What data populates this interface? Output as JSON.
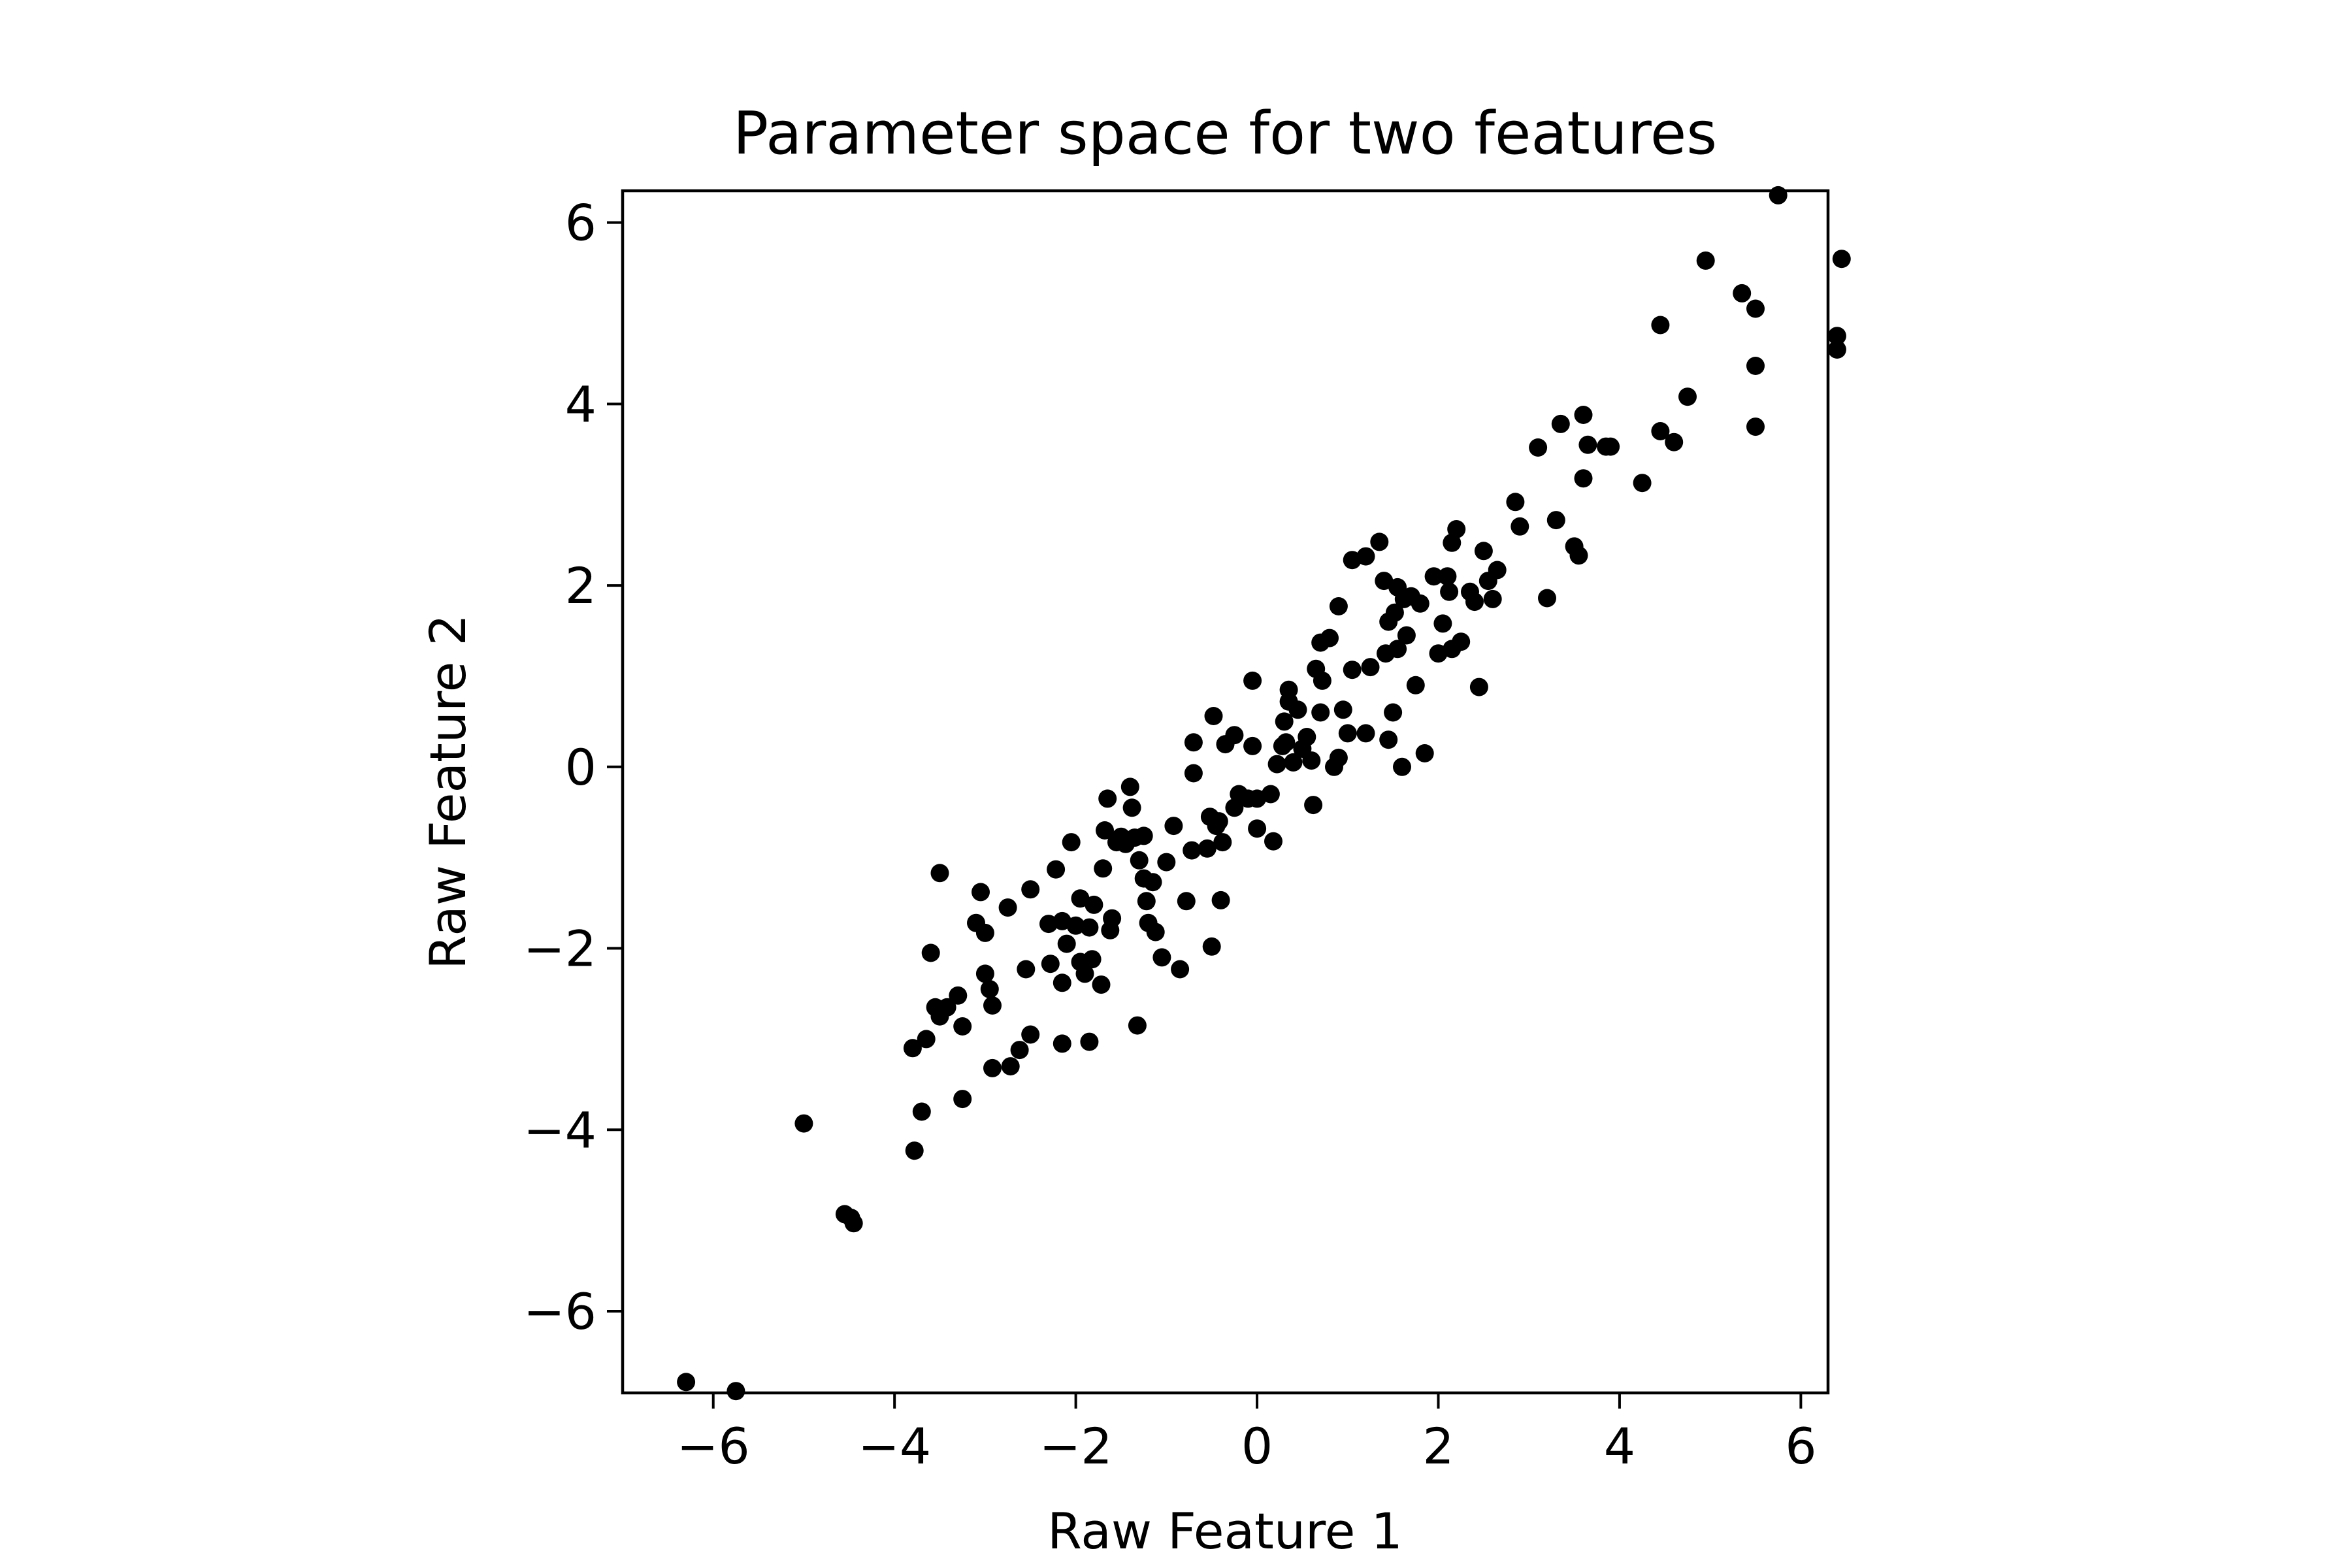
{
  "chart_data": {
    "type": "scatter",
    "title": "Parameter space for two features",
    "xlabel": "Raw Feature 1",
    "ylabel": "Raw Feature 2",
    "xlim": [
      -7.0,
      6.3
    ],
    "ylim": [
      -6.9,
      6.35
    ],
    "xticks": [
      -6,
      -4,
      -2,
      0,
      2,
      4,
      6
    ],
    "yticks": [
      -6,
      -4,
      -2,
      0,
      2,
      4,
      6
    ],
    "xtick_labels": [
      "−6",
      "−4",
      "−2",
      "0",
      "2",
      "4",
      "6"
    ],
    "ytick_labels": [
      "−6",
      "−4",
      "−2",
      "0",
      "2",
      "4",
      "6"
    ],
    "grid": false,
    "marker_color": "#000000",
    "points": [
      [
        -6.3,
        -6.78
      ],
      [
        -5.75,
        -6.88
      ],
      [
        -5.0,
        -3.93
      ],
      [
        -4.55,
        -4.93
      ],
      [
        -4.48,
        -4.97
      ],
      [
        -4.45,
        -5.03
      ],
      [
        -3.8,
        -3.1
      ],
      [
        -3.78,
        -4.23
      ],
      [
        -3.7,
        -3.8
      ],
      [
        -3.65,
        -3.0
      ],
      [
        -3.6,
        -2.05
      ],
      [
        -3.55,
        -2.65
      ],
      [
        -3.5,
        -1.17
      ],
      [
        -3.5,
        -2.75
      ],
      [
        -3.42,
        -2.65
      ],
      [
        -3.3,
        -2.52
      ],
      [
        -3.25,
        -3.66
      ],
      [
        -3.25,
        -2.86
      ],
      [
        -3.1,
        -1.72
      ],
      [
        -3.05,
        -1.38
      ],
      [
        -3.0,
        -1.83
      ],
      [
        -3.0,
        -2.28
      ],
      [
        -2.95,
        -2.45
      ],
      [
        -2.92,
        -2.63
      ],
      [
        -2.92,
        -3.32
      ],
      [
        -2.75,
        -1.55
      ],
      [
        -2.72,
        -3.3
      ],
      [
        -2.62,
        -3.12
      ],
      [
        -2.55,
        -2.23
      ],
      [
        -2.5,
        -1.35
      ],
      [
        -2.5,
        -2.95
      ],
      [
        -2.3,
        -1.73
      ],
      [
        -2.28,
        -2.17
      ],
      [
        -2.22,
        -1.13
      ],
      [
        -2.15,
        -3.05
      ],
      [
        -2.15,
        -2.38
      ],
      [
        -2.15,
        -1.7
      ],
      [
        -2.1,
        -1.95
      ],
      [
        -2.05,
        -0.83
      ],
      [
        -2.0,
        -1.75
      ],
      [
        -1.95,
        -2.15
      ],
      [
        -1.95,
        -1.45
      ],
      [
        -1.9,
        -2.28
      ],
      [
        -1.85,
        -1.77
      ],
      [
        -1.85,
        -3.03
      ],
      [
        -1.82,
        -2.12
      ],
      [
        -1.8,
        -1.52
      ],
      [
        -1.72,
        -2.4
      ],
      [
        -1.7,
        -1.12
      ],
      [
        -1.68,
        -0.7
      ],
      [
        -1.65,
        -0.35
      ],
      [
        -1.62,
        -1.8
      ],
      [
        -1.6,
        -1.67
      ],
      [
        -1.55,
        -0.83
      ],
      [
        -1.5,
        -0.77
      ],
      [
        -1.45,
        -0.85
      ],
      [
        -1.4,
        -0.22
      ],
      [
        -1.38,
        -0.45
      ],
      [
        -1.35,
        -0.78
      ],
      [
        -1.32,
        -2.85
      ],
      [
        -1.3,
        -1.03
      ],
      [
        -1.25,
        -1.23
      ],
      [
        -1.25,
        -0.76
      ],
      [
        -1.22,
        -1.48
      ],
      [
        -1.2,
        -1.72
      ],
      [
        -1.15,
        -1.27
      ],
      [
        -1.12,
        -1.82
      ],
      [
        -1.05,
        -2.1
      ],
      [
        -1.0,
        -1.05
      ],
      [
        -0.92,
        -0.65
      ],
      [
        -0.85,
        -2.23
      ],
      [
        -0.78,
        -1.48
      ],
      [
        -0.72,
        -0.92
      ],
      [
        -0.7,
        -0.07
      ],
      [
        -0.7,
        0.27
      ],
      [
        -0.55,
        -0.9
      ],
      [
        -0.52,
        -0.55
      ],
      [
        -0.5,
        -1.98
      ],
      [
        -0.48,
        0.56
      ],
      [
        -0.45,
        -0.65
      ],
      [
        -0.42,
        -0.6
      ],
      [
        -0.4,
        -1.47
      ],
      [
        -0.38,
        -0.83
      ],
      [
        -0.35,
        0.25
      ],
      [
        -0.25,
        0.35
      ],
      [
        -0.25,
        -0.45
      ],
      [
        -0.2,
        -0.3
      ],
      [
        -0.1,
        -0.35
      ],
      [
        -0.05,
        0.95
      ],
      [
        -0.05,
        0.23
      ],
      [
        0.0,
        -0.35
      ],
      [
        0.0,
        -0.68
      ],
      [
        0.15,
        -0.3
      ],
      [
        0.18,
        -0.82
      ],
      [
        0.22,
        0.03
      ],
      [
        0.28,
        0.23
      ],
      [
        0.3,
        0.5
      ],
      [
        0.32,
        0.27
      ],
      [
        0.35,
        0.72
      ],
      [
        0.35,
        0.85
      ],
      [
        0.4,
        0.05
      ],
      [
        0.45,
        0.63
      ],
      [
        0.5,
        0.2
      ],
      [
        0.55,
        0.33
      ],
      [
        0.6,
        0.07
      ],
      [
        0.62,
        -0.42
      ],
      [
        0.65,
        1.08
      ],
      [
        0.7,
        0.6
      ],
      [
        0.7,
        1.37
      ],
      [
        0.72,
        0.95
      ],
      [
        0.8,
        1.42
      ],
      [
        0.85,
        0.0
      ],
      [
        0.9,
        1.77
      ],
      [
        0.9,
        0.1
      ],
      [
        0.95,
        0.63
      ],
      [
        1.0,
        0.37
      ],
      [
        1.05,
        1.07
      ],
      [
        1.05,
        2.28
      ],
      [
        1.2,
        0.37
      ],
      [
        1.2,
        2.32
      ],
      [
        1.25,
        1.1
      ],
      [
        1.35,
        2.48
      ],
      [
        1.4,
        2.05
      ],
      [
        1.42,
        1.25
      ],
      [
        1.45,
        0.3
      ],
      [
        1.45,
        1.6
      ],
      [
        1.5,
        0.6
      ],
      [
        1.52,
        1.7
      ],
      [
        1.55,
        1.98
      ],
      [
        1.55,
        1.3
      ],
      [
        1.6,
        0.0
      ],
      [
        1.62,
        1.85
      ],
      [
        1.65,
        1.45
      ],
      [
        1.7,
        1.88
      ],
      [
        1.75,
        0.9
      ],
      [
        1.8,
        1.8
      ],
      [
        1.85,
        0.15
      ],
      [
        1.95,
        2.1
      ],
      [
        2.0,
        1.25
      ],
      [
        2.05,
        1.58
      ],
      [
        2.1,
        2.1
      ],
      [
        2.12,
        1.93
      ],
      [
        2.15,
        2.47
      ],
      [
        2.15,
        1.3
      ],
      [
        2.2,
        2.62
      ],
      [
        2.25,
        1.38
      ],
      [
        2.35,
        1.93
      ],
      [
        2.4,
        1.82
      ],
      [
        2.45,
        0.88
      ],
      [
        2.5,
        2.38
      ],
      [
        2.55,
        2.05
      ],
      [
        2.6,
        1.85
      ],
      [
        2.65,
        2.17
      ],
      [
        2.85,
        2.92
      ],
      [
        2.9,
        2.65
      ],
      [
        3.1,
        3.52
      ],
      [
        3.2,
        1.86
      ],
      [
        3.3,
        2.72
      ],
      [
        3.35,
        3.78
      ],
      [
        3.5,
        2.43
      ],
      [
        3.55,
        2.33
      ],
      [
        3.6,
        3.18
      ],
      [
        3.6,
        3.88
      ],
      [
        3.65,
        3.55
      ],
      [
        3.85,
        3.53
      ],
      [
        3.9,
        3.53
      ],
      [
        4.25,
        3.13
      ],
      [
        4.45,
        3.7
      ],
      [
        4.45,
        4.87
      ],
      [
        4.6,
        3.58
      ],
      [
        4.75,
        4.08
      ],
      [
        4.95,
        5.58
      ],
      [
        5.35,
        5.22
      ],
      [
        5.5,
        5.05
      ],
      [
        5.5,
        4.42
      ],
      [
        5.5,
        3.75
      ],
      [
        5.75,
        6.3
      ],
      [
        6.4,
        4.75
      ],
      [
        6.4,
        4.6
      ],
      [
        6.45,
        5.6
      ]
    ]
  }
}
